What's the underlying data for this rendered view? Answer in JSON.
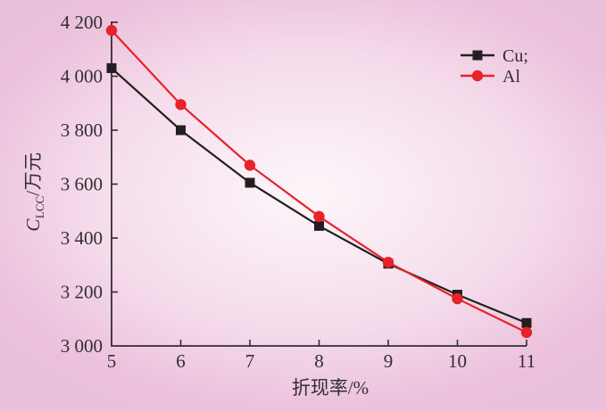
{
  "chart_data": {
    "type": "line",
    "title": "",
    "xlabel": "折现率/%",
    "ylabel": {
      "var": "C",
      "sub": "LCC",
      "unit": "/万元"
    },
    "x": [
      5,
      6,
      7,
      8,
      9,
      10,
      11
    ],
    "xtick_labels": [
      "5",
      "6",
      "7",
      "8",
      "9",
      "10",
      "11"
    ],
    "yticks": [
      3000,
      3200,
      3400,
      3600,
      3800,
      4000,
      4200
    ],
    "ytick_labels": [
      "3 000",
      "3 200",
      "3 400",
      "3 600",
      "3 800",
      "4 000",
      "4 200"
    ],
    "xlim": [
      5,
      11
    ],
    "ylim": [
      3000,
      4200
    ],
    "grid": false,
    "legend_position": "top-right",
    "series": [
      {
        "name": "Cu;",
        "color": "#231f20",
        "marker": "square",
        "values": [
          4030,
          3800,
          3605,
          3445,
          3305,
          3190,
          3085
        ]
      },
      {
        "name": "Al",
        "color": "#e62329",
        "marker": "circle",
        "values": [
          4170,
          3895,
          3670,
          3480,
          3310,
          3175,
          3050
        ]
      }
    ]
  },
  "colors": {
    "background_edge": "#eabfda",
    "background_center": "#fcf6fa",
    "axis": "#322d33",
    "text": "#322d33"
  }
}
